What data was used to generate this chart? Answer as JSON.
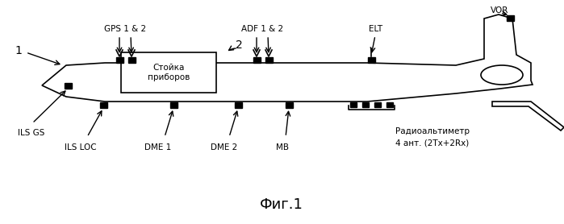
{
  "title": "Фиг.1",
  "background_color": "#ffffff",
  "fuselage_color": "#ffffff",
  "fuselage_edge": "#000000",
  "box_label": "Стойка\nприборов",
  "label_1": "1",
  "label_2": "2"
}
